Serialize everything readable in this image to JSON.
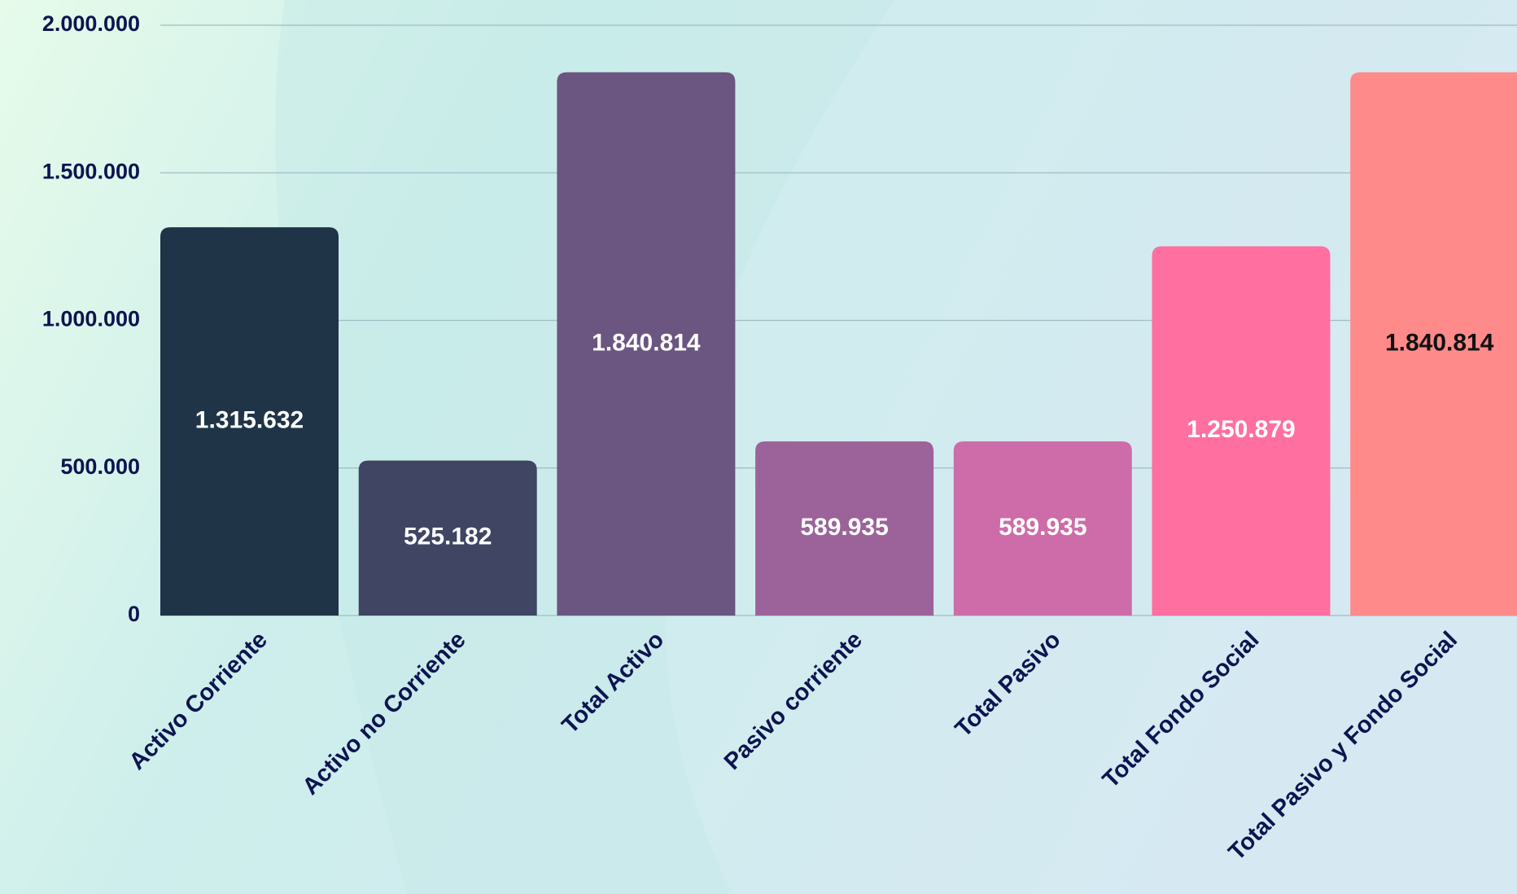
{
  "chart_data": {
    "type": "bar",
    "categories": [
      "Activo Corriente",
      "Activo no Corriente",
      "Total Activo",
      "Pasivo corriente",
      "Total Pasivo",
      "Total Fondo Social",
      "Total Pasivo y Fondo Social"
    ],
    "values": [
      1315632,
      525182,
      1840814,
      589935,
      589935,
      1250879,
      1840814
    ],
    "value_labels": [
      "1.315.632",
      "525.182",
      "1.840.814",
      "589.935",
      "589.935",
      "1.250.879",
      "1.840.814"
    ],
    "colors": [
      "#1f3447",
      "#3f4563",
      "#6a5680",
      "#9b6399",
      "#cd6ca8",
      "#ff6fa0",
      "#ff8a8a"
    ],
    "value_label_colors": [
      "#ffffff",
      "#ffffff",
      "#ffffff",
      "#ffffff",
      "#ffffff",
      "#ffffff",
      "#111111"
    ],
    "ylim": [
      0,
      2000000
    ],
    "yticks": [
      0,
      {
        "value": 500000,
        "label": "500.000"
      },
      {
        "value": 1000000,
        "label": "1.000.000"
      },
      {
        "value": 1500000,
        "label": "1.500.000"
      },
      {
        "value": 2000000,
        "label": "2.000.000"
      }
    ],
    "grid": true
  }
}
